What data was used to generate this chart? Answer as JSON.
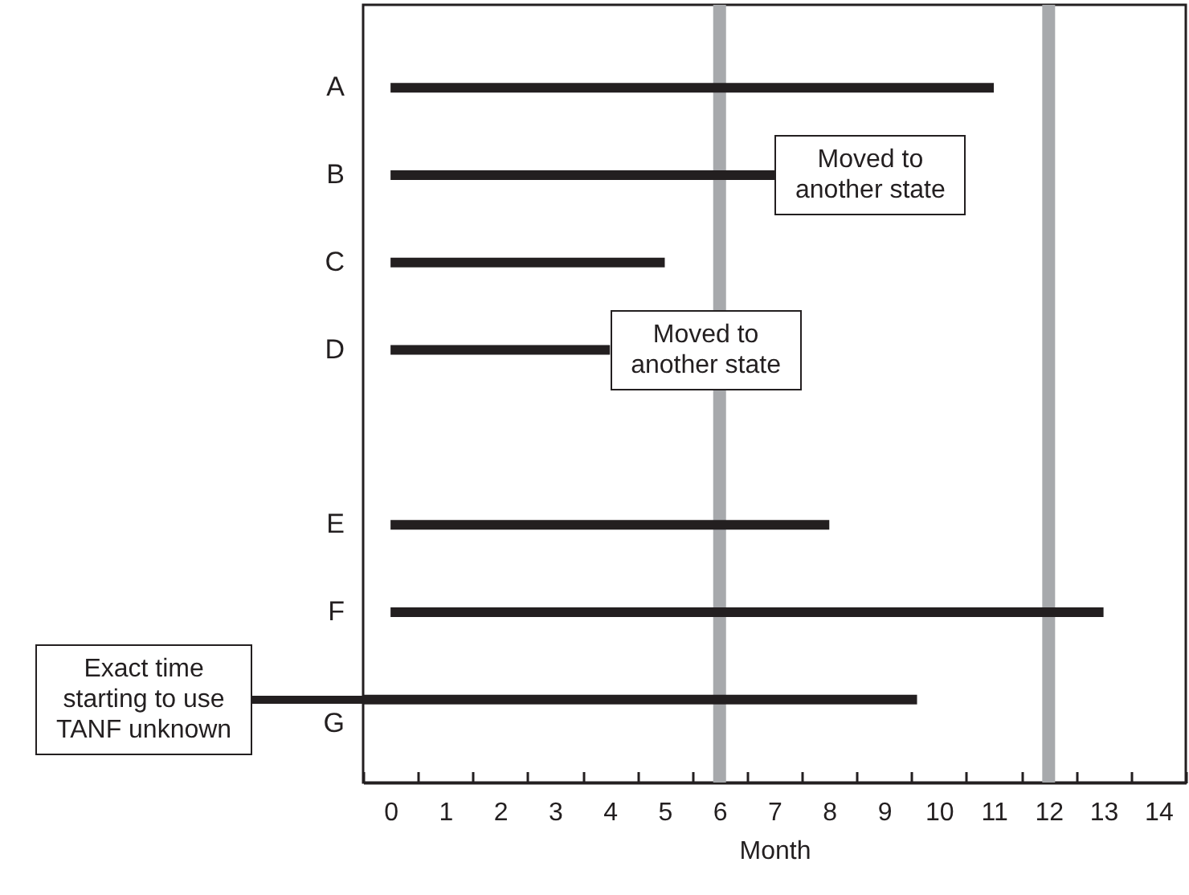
{
  "chart_data": {
    "type": "bar",
    "orientation": "horizontal",
    "xlabel": "Month",
    "categories": [
      "A",
      "B",
      "C",
      "D",
      null,
      "E",
      "F",
      "G"
    ],
    "base": [
      0,
      0,
      0,
      0,
      null,
      0,
      0,
      -0.5
    ],
    "values": [
      11,
      7,
      5,
      4,
      null,
      8,
      13,
      10.1
    ],
    "color": "#231f20",
    "xlim": [
      -0.5,
      14.5
    ],
    "xticks": [
      {
        "value": -0.5,
        "label": null
      },
      0,
      {
        "value": 0.5,
        "label": null
      },
      1,
      {
        "value": 1.5,
        "label": null
      },
      2,
      {
        "value": 2.5,
        "label": null
      },
      3,
      {
        "value": 3.5,
        "label": null
      },
      4,
      {
        "value": 4.5,
        "label": null
      },
      5,
      {
        "value": 5.5,
        "label": null
      },
      6,
      {
        "value": 6.5,
        "label": null
      },
      7,
      {
        "value": 7.5,
        "label": null
      },
      8,
      {
        "value": 8.5,
        "label": null
      },
      9,
      {
        "value": 9.5,
        "label": null
      },
      10,
      {
        "value": 10.5,
        "label": null
      },
      11,
      {
        "value": 11.5,
        "label": null
      },
      12,
      {
        "value": 12.5,
        "label": null
      },
      13,
      {
        "value": 13.5,
        "label": null
      },
      14,
      {
        "value": 14.5,
        "label": null
      }
    ],
    "ref_lines": [
      {
        "axis": "x",
        "value": 6,
        "color": "#a7a9ac"
      },
      {
        "axis": "x",
        "value": 12,
        "color": "#a7a9ac"
      }
    ],
    "annotations": [
      {
        "text": "Moved to\nanother state",
        "x": 7,
        "y": "B"
      },
      {
        "text": "Moved to\nanother state",
        "x": 4,
        "y": "D"
      },
      "Exact time\nstarting to use\nTANF unknown"
    ]
  }
}
